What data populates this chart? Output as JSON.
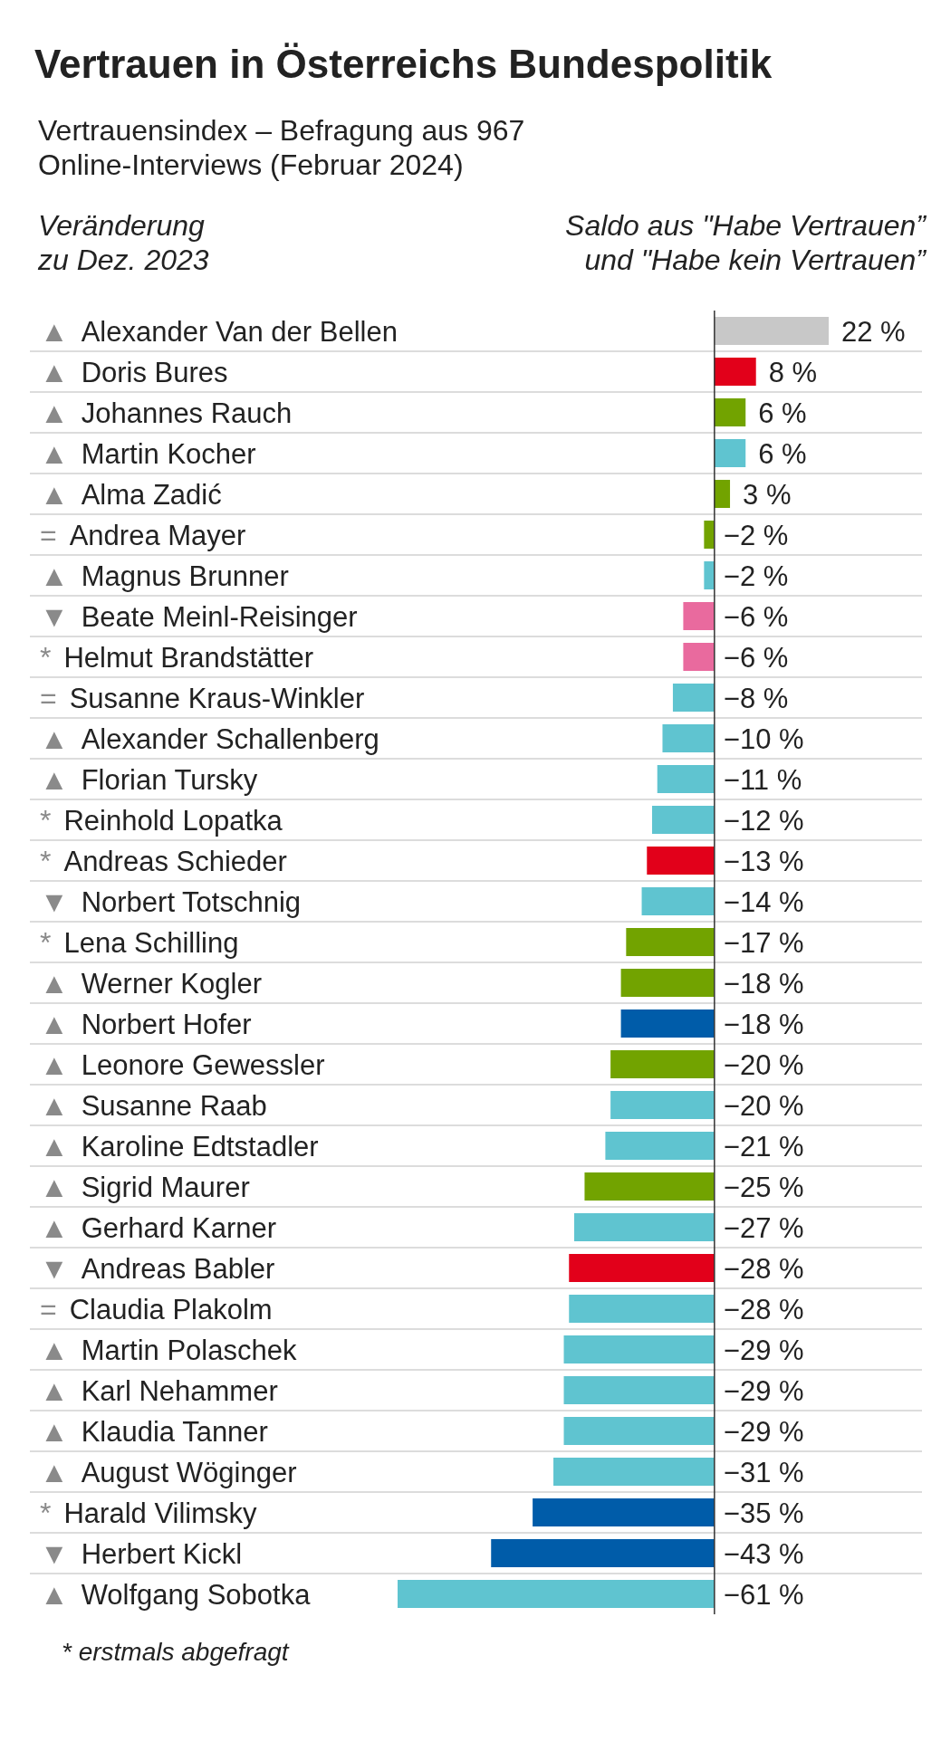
{
  "chart_data": {
    "type": "bar",
    "orientation": "horizontal",
    "title": "Vertrauen in Österreichs Bundespolitik",
    "subtitle": "Vertrauensindex – Befragung aus 967 Online-Interviews (Februar 2024)",
    "ylabel": "Veränderung zu Dez. 2023",
    "xlabel": "Saldo aus \"Habe Vertrauen” und \"Habe kein Vertrauen”",
    "categories": [
      "▲ Alexander Van der Bellen",
      "▲ Doris Bures",
      "▲ Johannes Rauch",
      "▲ Martin Kocher",
      "▲ Alma Zadić",
      "= Andrea Mayer",
      "▲ Magnus Brunner",
      "▼ Beate Meinl-Reisinger",
      "* Helmut Brandstätter",
      "= Susanne Kraus-Winkler",
      "▲ Alexander Schallenberg",
      "▲ Florian Tursky",
      "* Reinhold Lopatka",
      "* Andreas Schieder",
      "▼ Norbert Totschnig",
      "* Lena Schilling",
      "▲ Werner Kogler",
      "▲ Norbert Hofer",
      "▲ Leonore Gewessler",
      "▲ Susanne Raab",
      "▲ Karoline Edtstadler",
      "▲ Sigrid Maurer",
      "▲ Gerhard Karner",
      "▼ Andreas Babler",
      "= Claudia Plakolm",
      "▲ Martin Polaschek",
      "▲ Karl Nehammer",
      "▲ Klaudia Tanner",
      "▲ August Wöginger",
      "* Harald Vilimsky",
      "▼ Herbert Kickl",
      "▲ Wolfgang Sobotka"
    ],
    "values": [
      22,
      8,
      6,
      6,
      3,
      -2,
      -2,
      -6,
      -6,
      -8,
      -10,
      -11,
      -12,
      -13,
      -14,
      -17,
      -18,
      -18,
      -20,
      -20,
      -21,
      -25,
      -27,
      -28,
      -28,
      -29,
      -29,
      -29,
      -31,
      -35,
      -43,
      -61
    ],
    "value_labels": [
      "22 %",
      "8 %",
      "6 %",
      "6 %",
      "3 %",
      "−2 %",
      "−2 %",
      "−6 %",
      "−6 %",
      "−8 %",
      "−10 %",
      "−11 %",
      "−12 %",
      "−13 %",
      "−14 %",
      "−17 %",
      "−18 %",
      "−18 %",
      "−20 %",
      "−20 %",
      "−21 %",
      "−25 %",
      "−27 %",
      "−28 %",
      "−28 %",
      "−29 %",
      "−29 %",
      "−29 %",
      "−31 %",
      "−35 %",
      "−43 %",
      "−61 %"
    ],
    "colors": [
      "#c8c8c8",
      "#e2001a",
      "#72a300",
      "#5fc4d0",
      "#72a300",
      "#72a300",
      "#5fc4d0",
      "#e96a9e",
      "#e96a9e",
      "#5fc4d0",
      "#5fc4d0",
      "#5fc4d0",
      "#5fc4d0",
      "#e2001a",
      "#5fc4d0",
      "#72a300",
      "#72a300",
      "#005ca9",
      "#72a300",
      "#5fc4d0",
      "#5fc4d0",
      "#72a300",
      "#5fc4d0",
      "#e2001a",
      "#5fc4d0",
      "#5fc4d0",
      "#5fc4d0",
      "#5fc4d0",
      "#5fc4d0",
      "#005ca9",
      "#005ca9",
      "#5fc4d0"
    ],
    "grid": "y",
    "annotations": [
      "* erstmals abgefragt"
    ]
  }
}
